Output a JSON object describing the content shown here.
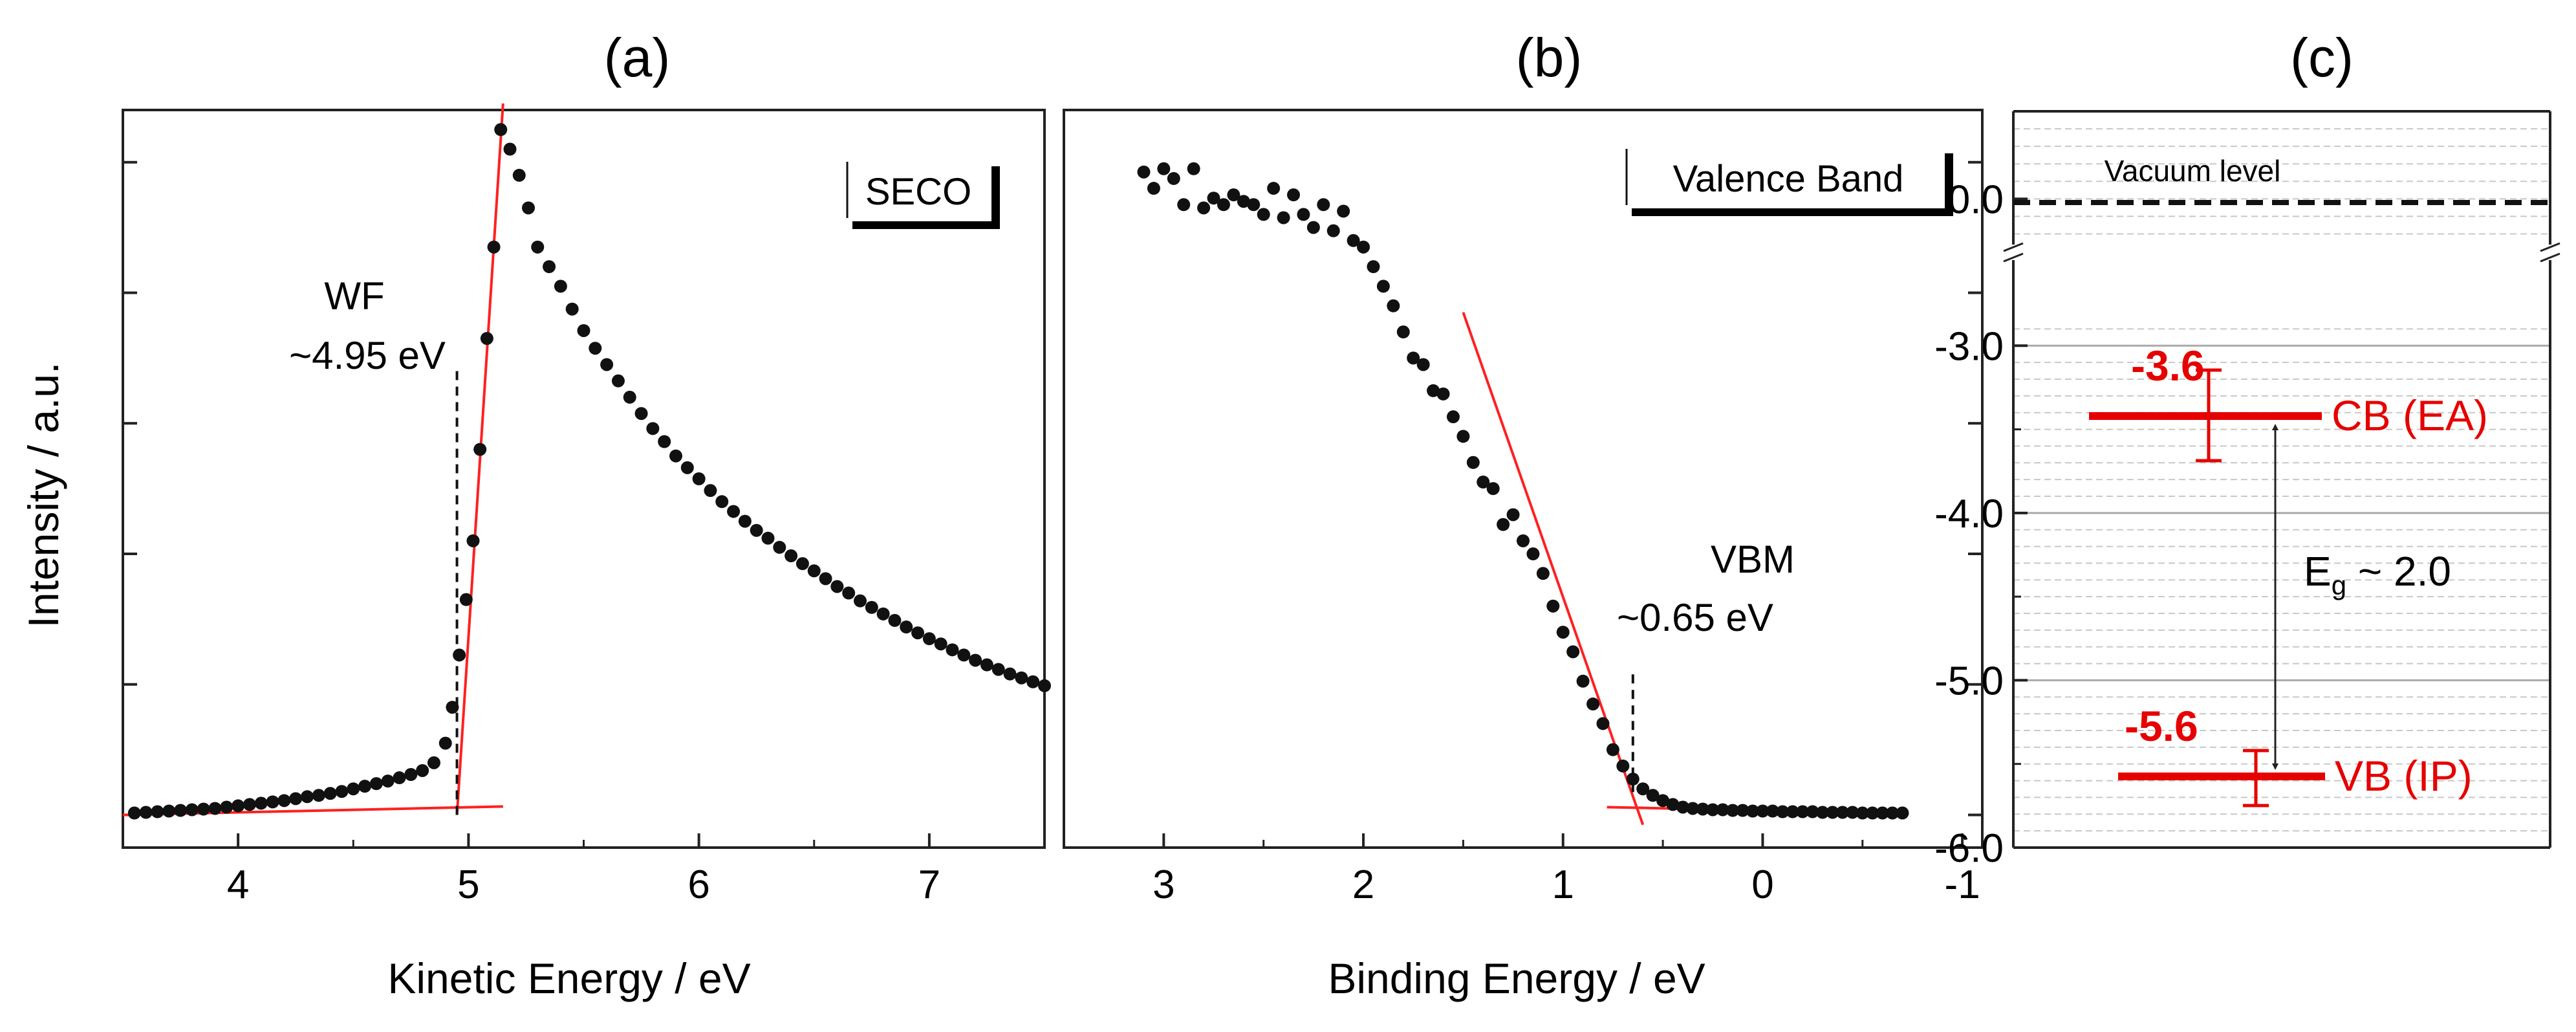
{
  "ylabel_shared": "Intensity / a.u.",
  "panels": {
    "a": {
      "label": "(a)",
      "legend": "SECO",
      "ann_line1": "WF",
      "ann_line2": "~4.95 eV"
    },
    "b": {
      "label": "(b)",
      "legend": "Valence Band",
      "ann_line1": "VBM",
      "ann_line2": "~0.65 eV"
    },
    "c": {
      "label": "(c)",
      "vacuum_label": "Vacuum level",
      "cb_value": "-3.6",
      "cb_label": "CB (EA)",
      "vb_value": "-5.6",
      "vb_label": "VB (IP)",
      "gap_main": "E",
      "gap_sub": "g",
      "gap_rest": " ~ 2.0"
    }
  },
  "colors": {
    "fit": "#ff2020",
    "marker": "#111111",
    "level": "#e60000",
    "grid": "#c8c8c8"
  },
  "chart_data": [
    {
      "type": "scatter",
      "panel": "a",
      "title": "(a)",
      "xlabel": "Kinetic Energy / eV",
      "ylabel": "Intensity / a.u.",
      "xlim": [
        3.5,
        7.5
      ],
      "ylim": [
        -0.05,
        1.08
      ],
      "xticks": [
        4,
        5,
        6,
        7
      ],
      "x": [
        3.55,
        3.6,
        3.65,
        3.7,
        3.75,
        3.8,
        3.85,
        3.9,
        3.95,
        4.0,
        4.05,
        4.1,
        4.15,
        4.2,
        4.25,
        4.3,
        4.35,
        4.4,
        4.45,
        4.5,
        4.55,
        4.6,
        4.65,
        4.7,
        4.75,
        4.8,
        4.85,
        4.9,
        4.93,
        4.96,
        4.99,
        5.02,
        5.05,
        5.08,
        5.11,
        5.14,
        5.18,
        5.22,
        5.26,
        5.3,
        5.35,
        5.4,
        5.45,
        5.5,
        5.55,
        5.6,
        5.65,
        5.7,
        5.75,
        5.8,
        5.85,
        5.9,
        5.95,
        6.0,
        6.05,
        6.1,
        6.15,
        6.2,
        6.25,
        6.3,
        6.35,
        6.4,
        6.45,
        6.5,
        6.55,
        6.6,
        6.65,
        6.7,
        6.75,
        6.8,
        6.85,
        6.9,
        6.95,
        7.0,
        7.05,
        7.1,
        7.15,
        7.2,
        7.25,
        7.3,
        7.35,
        7.4,
        7.45,
        7.5
      ],
      "y": [
        0.003,
        0.004,
        0.005,
        0.006,
        0.007,
        0.008,
        0.009,
        0.01,
        0.012,
        0.014,
        0.016,
        0.018,
        0.02,
        0.022,
        0.025,
        0.028,
        0.03,
        0.033,
        0.036,
        0.04,
        0.044,
        0.048,
        0.052,
        0.057,
        0.062,
        0.068,
        0.08,
        0.11,
        0.165,
        0.245,
        0.33,
        0.42,
        0.56,
        0.73,
        0.87,
        1.05,
        1.02,
        0.98,
        0.93,
        0.87,
        0.84,
        0.81,
        0.775,
        0.742,
        0.715,
        0.69,
        0.665,
        0.64,
        0.615,
        0.592,
        0.572,
        0.55,
        0.532,
        0.515,
        0.497,
        0.48,
        0.465,
        0.45,
        0.436,
        0.424,
        0.41,
        0.397,
        0.385,
        0.374,
        0.362,
        0.35,
        0.34,
        0.328,
        0.318,
        0.308,
        0.298,
        0.288,
        0.279,
        0.27,
        0.262,
        0.253,
        0.245,
        0.237,
        0.23,
        0.223,
        0.216,
        0.21,
        0.204,
        0.198
      ],
      "fit_lines": [
        {
          "x": [
            3.5,
            5.15
          ],
          "y": [
            0.0,
            0.013
          ]
        },
        {
          "x": [
            4.95,
            5.15
          ],
          "y": [
            0.0,
            1.09
          ]
        }
      ],
      "annotation": {
        "text": "WF ~4.95 eV",
        "x": 4.95,
        "y_from": 0.0,
        "y_to": 0.68
      },
      "legend": "SECO"
    },
    {
      "type": "scatter",
      "panel": "b",
      "title": "(b)",
      "xlabel": "Binding Energy / eV",
      "ylabel": "Intensity / a.u.",
      "xlim": [
        3.5,
        -1.1
      ],
      "ylim": [
        -0.05,
        1.08
      ],
      "xticks": [
        3,
        2,
        1,
        0,
        -1
      ],
      "x": [
        3.1,
        3.05,
        3.0,
        2.95,
        2.9,
        2.85,
        2.8,
        2.75,
        2.7,
        2.65,
        2.6,
        2.55,
        2.5,
        2.45,
        2.4,
        2.35,
        2.3,
        2.25,
        2.2,
        2.15,
        2.1,
        2.05,
        2.0,
        1.95,
        1.9,
        1.85,
        1.8,
        1.75,
        1.7,
        1.65,
        1.6,
        1.55,
        1.5,
        1.45,
        1.4,
        1.35,
        1.3,
        1.25,
        1.2,
        1.15,
        1.1,
        1.05,
        1.0,
        0.95,
        0.9,
        0.85,
        0.8,
        0.75,
        0.7,
        0.65,
        0.6,
        0.55,
        0.5,
        0.45,
        0.4,
        0.35,
        0.3,
        0.25,
        0.2,
        0.15,
        0.1,
        0.05,
        0.0,
        -0.05,
        -0.1,
        -0.15,
        -0.2,
        -0.25,
        -0.3,
        -0.35,
        -0.4,
        -0.45,
        -0.5,
        -0.55,
        -0.6,
        -0.65,
        -0.7
      ],
      "y": [
        0.985,
        0.96,
        0.99,
        0.975,
        0.935,
        0.99,
        0.93,
        0.945,
        0.935,
        0.95,
        0.94,
        0.935,
        0.92,
        0.96,
        0.915,
        0.95,
        0.92,
        0.9,
        0.935,
        0.895,
        0.925,
        0.88,
        0.87,
        0.84,
        0.81,
        0.78,
        0.74,
        0.7,
        0.69,
        0.65,
        0.645,
        0.61,
        0.58,
        0.54,
        0.51,
        0.5,
        0.445,
        0.46,
        0.42,
        0.4,
        0.37,
        0.32,
        0.28,
        0.25,
        0.205,
        0.17,
        0.14,
        0.1,
        0.075,
        0.055,
        0.04,
        0.03,
        0.022,
        0.016,
        0.012,
        0.01,
        0.009,
        0.008,
        0.008,
        0.007,
        0.007,
        0.006,
        0.006,
        0.006,
        0.005,
        0.005,
        0.005,
        0.005,
        0.004,
        0.004,
        0.004,
        0.004,
        0.003,
        0.003,
        0.003,
        0.003,
        0.003
      ],
      "fit_lines": [
        {
          "x": [
            1.5,
            0.6
          ],
          "y": [
            0.77,
            -0.015
          ]
        },
        {
          "x": [
            0.78,
            -0.72
          ],
          "y": [
            0.012,
            0.002
          ]
        }
      ],
      "annotation": {
        "text": "VBM ~0.65 eV",
        "x": 0.65,
        "y_from": 0.035,
        "y_to": 0.22
      },
      "legend": "Valence Band"
    },
    {
      "type": "diagram",
      "panel": "c",
      "title": "(c)",
      "ylabel": "",
      "yticks": [
        "0.0",
        "-3.0",
        "-4.0",
        "-5.0",
        "-6.0"
      ],
      "axis_break": "between 0.0 and -3.0",
      "vacuum_level": 0.0,
      "upper_ylim": [
        -0.25,
        0.5
      ],
      "lower_ylim": [
        -6.0,
        -2.5
      ],
      "levels": [
        {
          "name": "CB (EA)",
          "value": -3.6,
          "error": 0.25
        },
        {
          "name": "VB (IP)",
          "value": -5.6,
          "error": 0.13
        }
      ],
      "gap": {
        "label": "Eg ~ 2.0",
        "value": 2.0
      }
    }
  ]
}
